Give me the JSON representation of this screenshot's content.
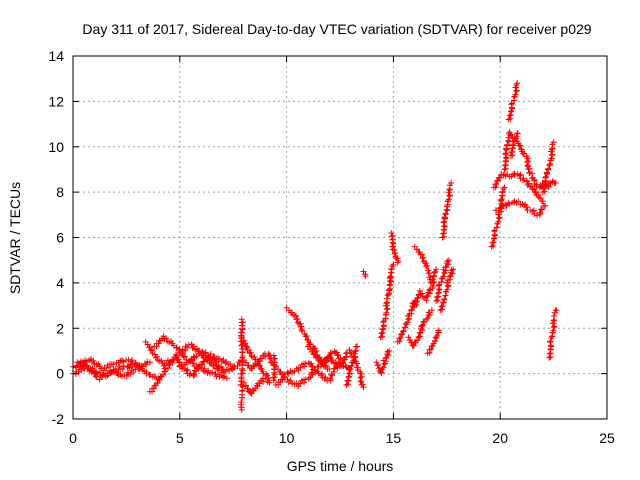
{
  "chart_data": {
    "type": "scatter",
    "title": "Day 311 of 2017, Sidereal Day-to-day VTEC variation (SDTVAR) for receiver p029",
    "xlabel": "GPS time / hours",
    "ylabel": "SDTVAR / TECUs",
    "xlim": [
      0,
      25
    ],
    "ylim": [
      -2,
      14
    ],
    "xticks": [
      0,
      5,
      10,
      15,
      20,
      25
    ],
    "yticks": [
      -2,
      0,
      2,
      4,
      6,
      8,
      10,
      12,
      14
    ],
    "grid": true,
    "marker": "+",
    "marker_color": "#ff0000",
    "series": [
      {
        "name": "SDTVAR",
        "segments": [
          [
            [
              0.0,
              0.3
            ],
            [
              0.5,
              0.4
            ],
            [
              1.0,
              0.1
            ],
            [
              1.5,
              -0.1
            ],
            [
              2.0,
              0.2
            ],
            [
              2.5,
              0.3
            ],
            [
              3.0,
              0.4
            ],
            [
              3.5,
              0.0
            ],
            [
              4.0,
              -0.2
            ]
          ],
          [
            [
              0.0,
              0.0
            ],
            [
              0.6,
              0.3
            ],
            [
              1.2,
              -0.2
            ],
            [
              1.8,
              0.1
            ],
            [
              2.4,
              -0.1
            ],
            [
              3.0,
              0.2
            ],
            [
              3.6,
              0.5
            ]
          ],
          [
            [
              0.2,
              0.5
            ],
            [
              0.8,
              0.6
            ],
            [
              1.4,
              0.2
            ],
            [
              2.0,
              0.5
            ],
            [
              2.6,
              0.6
            ],
            [
              3.2,
              0.3
            ]
          ],
          [
            [
              3.4,
              1.4
            ],
            [
              3.8,
              0.8
            ],
            [
              4.2,
              0.4
            ],
            [
              4.6,
              0.6
            ],
            [
              5.0,
              0.9
            ],
            [
              5.5,
              1.3
            ],
            [
              6.0,
              0.9
            ],
            [
              6.5,
              0.4
            ],
            [
              7.0,
              0.1
            ],
            [
              7.5,
              0.2
            ],
            [
              7.8,
              0.5
            ]
          ],
          [
            [
              3.6,
              -0.8
            ],
            [
              4.0,
              -0.3
            ],
            [
              4.4,
              0.3
            ],
            [
              4.8,
              0.7
            ],
            [
              5.2,
              0.2
            ],
            [
              5.6,
              -0.1
            ],
            [
              6.0,
              0.4
            ],
            [
              6.5,
              0.8
            ],
            [
              7.0,
              0.6
            ],
            [
              7.5,
              0.3
            ]
          ],
          [
            [
              3.8,
              1.2
            ],
            [
              4.2,
              1.6
            ],
            [
              4.8,
              1.2
            ],
            [
              5.4,
              0.6
            ],
            [
              6.0,
              0.2
            ],
            [
              6.6,
              0.0
            ],
            [
              7.2,
              -0.2
            ]
          ],
          [
            [
              5.0,
              0.3
            ],
            [
              5.5,
              0.6
            ],
            [
              6.0,
              1.0
            ],
            [
              6.5,
              0.7
            ],
            [
              7.0,
              0.2
            ]
          ],
          [
            [
              7.9,
              2.4
            ],
            [
              7.9,
              0.5
            ],
            [
              7.9,
              -1.6
            ]
          ],
          [
            [
              7.9,
              1.6
            ],
            [
              8.2,
              1.0
            ],
            [
              8.6,
              0.5
            ],
            [
              9.0,
              0.0
            ],
            [
              9.2,
              -0.4
            ]
          ],
          [
            [
              8.0,
              0.6
            ],
            [
              8.3,
              0.2
            ],
            [
              8.7,
              0.6
            ],
            [
              9.1,
              0.9
            ],
            [
              9.4,
              0.4
            ]
          ],
          [
            [
              8.0,
              -0.4
            ],
            [
              8.3,
              -0.9
            ],
            [
              8.6,
              -0.5
            ],
            [
              9.0,
              -0.2
            ]
          ],
          [
            [
              9.4,
              0.8
            ],
            [
              9.4,
              0.3
            ],
            [
              9.4,
              -0.3
            ]
          ],
          [
            [
              9.5,
              0.3
            ],
            [
              10.0,
              -0.3
            ],
            [
              10.5,
              -0.5
            ],
            [
              11.0,
              -0.2
            ],
            [
              11.5,
              0.3
            ],
            [
              12.0,
              0.7
            ],
            [
              12.5,
              0.3
            ]
          ],
          [
            [
              9.5,
              -0.5
            ],
            [
              10.0,
              0.0
            ],
            [
              10.5,
              0.2
            ],
            [
              11.0,
              0.5
            ],
            [
              11.5,
              0.0
            ],
            [
              12.0,
              -0.3
            ],
            [
              12.5,
              0.5
            ],
            [
              13.0,
              0.2
            ]
          ],
          [
            [
              10.0,
              2.9
            ],
            [
              10.4,
              2.5
            ],
            [
              10.8,
              1.8
            ],
            [
              11.2,
              1.2
            ],
            [
              11.6,
              0.6
            ],
            [
              12.0,
              0.2
            ]
          ],
          [
            [
              11.0,
              1.2
            ],
            [
              11.3,
              0.8
            ],
            [
              11.7,
              0.4
            ],
            [
              12.2,
              1.0
            ],
            [
              12.6,
              0.6
            ]
          ],
          [
            [
              12.5,
              0.3
            ],
            [
              12.9,
              1.0
            ],
            [
              13.2,
              0.6
            ],
            [
              13.4,
              0.1
            ],
            [
              13.6,
              -0.6
            ]
          ],
          [
            [
              12.8,
              -0.5
            ],
            [
              13.0,
              0.3
            ],
            [
              13.3,
              1.2
            ]
          ],
          [
            [
              13.6,
              4.5
            ],
            [
              13.7,
              4.3
            ]
          ],
          [
            [
              14.2,
              0.5
            ],
            [
              14.4,
              0.0
            ],
            [
              14.6,
              0.6
            ],
            [
              14.8,
              1.0
            ]
          ],
          [
            [
              14.4,
              1.6
            ],
            [
              14.6,
              2.4
            ],
            [
              14.8,
              3.8
            ],
            [
              15.0,
              4.8
            ]
          ],
          [
            [
              14.9,
              6.2
            ],
            [
              15.0,
              5.4
            ],
            [
              15.2,
              4.9
            ]
          ],
          [
            [
              15.2,
              1.4
            ],
            [
              15.5,
              2.0
            ],
            [
              15.8,
              2.7
            ],
            [
              16.0,
              3.2
            ]
          ],
          [
            [
              15.7,
              1.6
            ],
            [
              15.9,
              1.2
            ],
            [
              16.2,
              1.7
            ],
            [
              16.5,
              2.4
            ],
            [
              16.8,
              2.8
            ]
          ],
          [
            [
              16.0,
              3.0
            ],
            [
              16.2,
              3.6
            ],
            [
              16.5,
              3.3
            ],
            [
              16.8,
              3.8
            ],
            [
              17.0,
              4.6
            ]
          ],
          [
            [
              16.0,
              5.6
            ],
            [
              16.3,
              5.2
            ],
            [
              16.6,
              4.6
            ],
            [
              16.8,
              4.0
            ]
          ],
          [
            [
              16.6,
              0.9
            ],
            [
              16.9,
              1.4
            ],
            [
              17.1,
              1.9
            ]
          ],
          [
            [
              17.0,
              3.2
            ],
            [
              17.2,
              4.0
            ],
            [
              17.4,
              4.6
            ],
            [
              17.6,
              5.0
            ]
          ],
          [
            [
              17.2,
              2.8
            ],
            [
              17.4,
              3.4
            ],
            [
              17.6,
              4.2
            ],
            [
              17.8,
              4.6
            ]
          ],
          [
            [
              17.3,
              6.0
            ],
            [
              17.5,
              7.4
            ],
            [
              17.7,
              8.4
            ]
          ],
          [
            [
              19.6,
              5.6
            ],
            [
              19.8,
              6.4
            ],
            [
              20.0,
              7.2
            ],
            [
              20.2,
              8.2
            ]
          ],
          [
            [
              19.7,
              8.2
            ],
            [
              19.9,
              8.6
            ],
            [
              20.1,
              8.8
            ],
            [
              20.4,
              8.7
            ],
            [
              20.8,
              8.8
            ],
            [
              21.2,
              8.5
            ],
            [
              21.6,
              8.1
            ],
            [
              22.0,
              7.6
            ]
          ],
          [
            [
              19.8,
              7.2
            ],
            [
              20.2,
              7.4
            ],
            [
              20.6,
              7.6
            ],
            [
              21.0,
              7.5
            ],
            [
              21.4,
              7.2
            ],
            [
              21.8,
              7.0
            ],
            [
              22.1,
              7.4
            ]
          ],
          [
            [
              20.2,
              9.0
            ],
            [
              20.4,
              10.6
            ],
            [
              20.8,
              10.2
            ],
            [
              21.2,
              9.6
            ],
            [
              21.5,
              8.6
            ],
            [
              21.8,
              8.2
            ],
            [
              22.1,
              8.4
            ]
          ],
          [
            [
              20.4,
              11.2
            ],
            [
              20.6,
              12.0
            ],
            [
              20.8,
              12.8
            ]
          ],
          [
            [
              20.5,
              9.6
            ],
            [
              20.6,
              10.2
            ],
            [
              20.8,
              10.6
            ]
          ],
          [
            [
              22.0,
              8.0
            ],
            [
              22.3,
              9.2
            ],
            [
              22.5,
              10.2
            ]
          ],
          [
            [
              22.0,
              8.4
            ],
            [
              22.2,
              8.2
            ],
            [
              22.4,
              8.5
            ],
            [
              22.6,
              8.4
            ]
          ],
          [
            [
              22.3,
              0.7
            ],
            [
              22.4,
              1.6
            ],
            [
              22.6,
              2.8
            ]
          ]
        ]
      }
    ]
  }
}
